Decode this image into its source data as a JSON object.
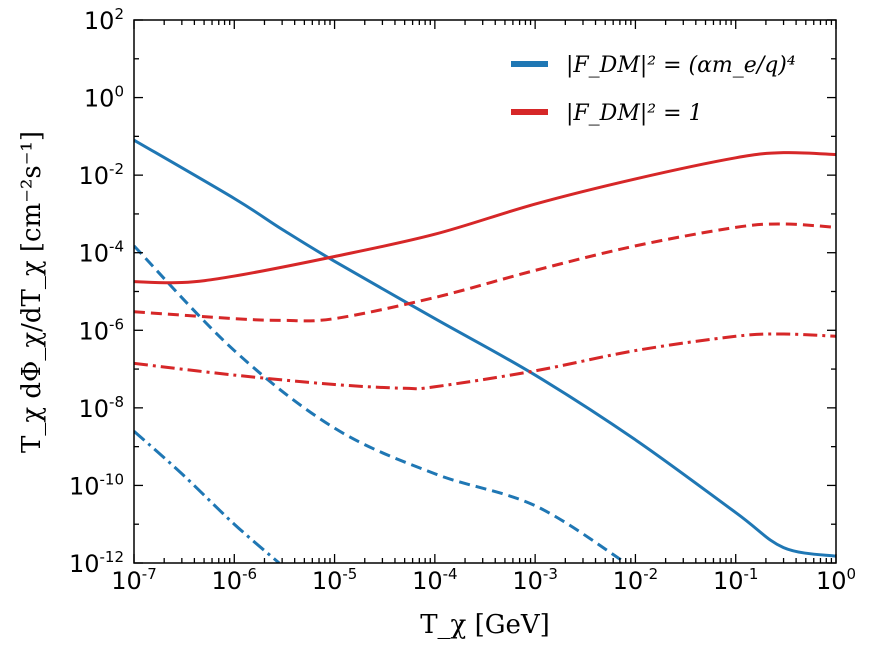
{
  "chart_data": {
    "type": "line",
    "xscale": "log",
    "yscale": "log",
    "xlim": [
      1e-07,
      1
    ],
    "ylim": [
      1e-12,
      100
    ],
    "xlabel": "T_χ [GeV]",
    "ylabel": "T_χ dΦ_χ/dT_χ [cm⁻²s⁻¹]",
    "x_ticks": [
      {
        "base": "10",
        "exp": "-7",
        "value": 1e-07
      },
      {
        "base": "10",
        "exp": "-6",
        "value": 1e-06
      },
      {
        "base": "10",
        "exp": "-5",
        "value": 1e-05
      },
      {
        "base": "10",
        "exp": "-4",
        "value": 0.0001
      },
      {
        "base": "10",
        "exp": "-3",
        "value": 0.001
      },
      {
        "base": "10",
        "exp": "-2",
        "value": 0.01
      },
      {
        "base": "10",
        "exp": "-1",
        "value": 0.1
      },
      {
        "base": "10",
        "exp": "0",
        "value": 1
      }
    ],
    "y_ticks": [
      {
        "base": "10",
        "exp": "-12",
        "value": 1e-12
      },
      {
        "base": "10",
        "exp": "-10",
        "value": 1e-10
      },
      {
        "base": "10",
        "exp": "-8",
        "value": 1e-08
      },
      {
        "base": "10",
        "exp": "-6",
        "value": 1e-06
      },
      {
        "base": "10",
        "exp": "-4",
        "value": 0.0001
      },
      {
        "base": "10",
        "exp": "-2",
        "value": 0.01
      },
      {
        "base": "10",
        "exp": "0",
        "value": 1
      },
      {
        "base": "10",
        "exp": "2",
        "value": 100
      }
    ],
    "legend": {
      "placement": "top-right",
      "entries": [
        {
          "label": "|F_DM|² = (αm_e/q)⁴",
          "color": "#1f77b4"
        },
        {
          "label": "|F_DM|² = 1",
          "color": "#d62728"
        }
      ]
    },
    "series": [
      {
        "name": "blue-solid",
        "color": "#1f77b4",
        "style": "solid",
        "x": [
          1e-07,
          1e-06,
          3e-06,
          1e-05,
          0.0001,
          0.001,
          0.01,
          0.1,
          0.3,
          1
        ],
        "y": [
          0.08,
          0.0025,
          0.0004,
          6e-05,
          2e-06,
          7e-08,
          1.5e-09,
          2e-11,
          2.5e-12,
          1.5e-12
        ]
      },
      {
        "name": "blue-dashed",
        "color": "#1f77b4",
        "style": "dashed",
        "x": [
          1e-07,
          1e-06,
          1e-05,
          0.0001,
          0.001,
          0.008
        ],
        "y": [
          0.00015,
          3e-07,
          3e-09,
          2e-10,
          3e-11,
          1e-12
        ]
      },
      {
        "name": "blue-dashdot",
        "color": "#1f77b4",
        "style": "dashdot",
        "x": [
          1e-07,
          3e-07,
          1e-06,
          2.8e-06
        ],
        "y": [
          2.5e-09,
          2e-10,
          1e-11,
          1e-12
        ]
      },
      {
        "name": "red-solid",
        "color": "#d62728",
        "style": "solid",
        "x": [
          1e-07,
          3e-07,
          1e-06,
          1e-05,
          0.0001,
          0.001,
          0.01,
          0.1,
          0.3,
          1
        ],
        "y": [
          1.8e-05,
          1.7e-05,
          2.5e-05,
          8e-05,
          0.0003,
          0.0018,
          0.008,
          0.028,
          0.038,
          0.034
        ]
      },
      {
        "name": "red-dashed",
        "color": "#d62728",
        "style": "dashed",
        "x": [
          1e-07,
          1e-06,
          3e-06,
          1e-05,
          0.0001,
          0.001,
          0.01,
          0.1,
          0.3,
          1
        ],
        "y": [
          3e-06,
          2e-06,
          1.8e-06,
          2e-06,
          7e-06,
          3.5e-05,
          0.00015,
          0.00045,
          0.00055,
          0.00045
        ]
      },
      {
        "name": "red-dashdot",
        "color": "#d62728",
        "style": "dashdot",
        "x": [
          1e-07,
          1e-06,
          1e-05,
          5e-05,
          0.0001,
          0.001,
          0.01,
          0.1,
          0.3,
          1
        ],
        "y": [
          1.4e-07,
          7e-08,
          4e-08,
          3.2e-08,
          3.5e-08,
          9e-08,
          3e-07,
          7e-07,
          8e-07,
          7e-07
        ]
      }
    ]
  }
}
